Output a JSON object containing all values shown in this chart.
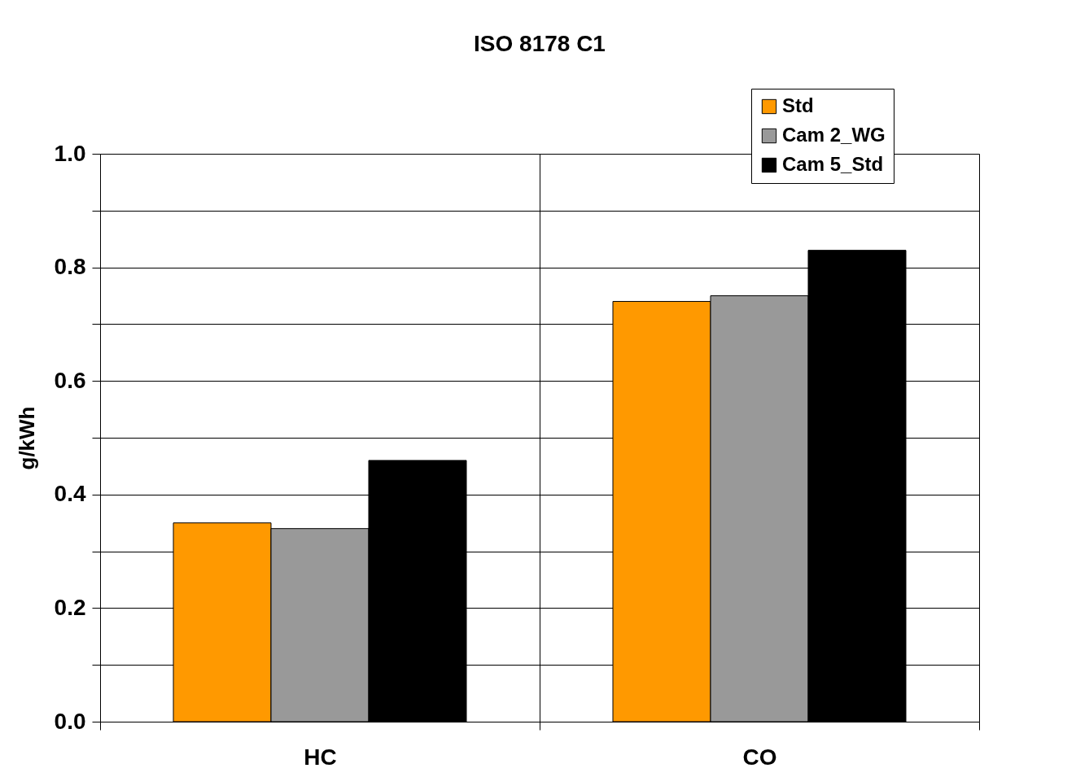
{
  "chart_data": {
    "type": "bar",
    "title": "ISO 8178 C1",
    "ylabel": "g/kWh",
    "categories": [
      "HC",
      "CO"
    ],
    "series": [
      {
        "name": "Std",
        "color": "#ff9900",
        "values": [
          0.35,
          0.74
        ]
      },
      {
        "name": "Cam 2_WG",
        "color": "#999999",
        "values": [
          0.34,
          0.75
        ]
      },
      {
        "name": "Cam 5_Std",
        "color": "#000000",
        "values": [
          0.46,
          0.83
        ]
      }
    ],
    "ylim": [
      0,
      1
    ],
    "yticks": [
      {
        "value": 0,
        "label": "0.0"
      },
      {
        "value": 0.1,
        "label": null
      },
      0.2,
      {
        "value": 0.3,
        "label": null
      },
      0.4,
      {
        "value": 0.5,
        "label": null
      },
      0.6,
      {
        "value": 0.7,
        "label": null
      },
      0.8,
      {
        "value": 0.9,
        "label": null
      },
      {
        "value": 1,
        "label": "1.0"
      }
    ],
    "grid": true,
    "legend": "top right"
  }
}
